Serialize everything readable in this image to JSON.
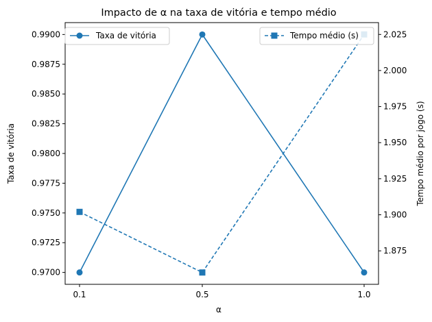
{
  "chart_data": {
    "type": "line",
    "title": "Impacto de α na taxa de vitória e tempo médio",
    "xlabel": "α",
    "ylabel_left": "Taxa de vitória",
    "ylabel_right": "Tempo médio por jogo (s)",
    "categories": [
      "0.1",
      "0.5",
      "1.0"
    ],
    "series": [
      {
        "name": "Taxa de vitória",
        "axis": "left",
        "values": [
          0.97,
          0.99,
          0.97
        ],
        "color": "#1f77b4",
        "marker": "circle",
        "linestyle": "solid"
      },
      {
        "name": "Tempo médio (s)",
        "axis": "right",
        "values": [
          1.902,
          1.86,
          2.025
        ],
        "color": "#1f77b4",
        "marker": "square",
        "linestyle": "dashed"
      }
    ],
    "ylim_left": [
      0.969,
      0.991
    ],
    "ylim_right": [
      1.8518,
      2.0332
    ],
    "yticks_left": [
      "0.9700",
      "0.9725",
      "0.9750",
      "0.9775",
      "0.9800",
      "0.9825",
      "0.9850",
      "0.9875",
      "0.9900"
    ],
    "yticks_right": [
      "1.875",
      "1.900",
      "1.925",
      "1.950",
      "1.975",
      "2.000",
      "2.025"
    ],
    "grid": false,
    "legend_left_placement": "top-left",
    "legend_right_placement": "top-right"
  }
}
